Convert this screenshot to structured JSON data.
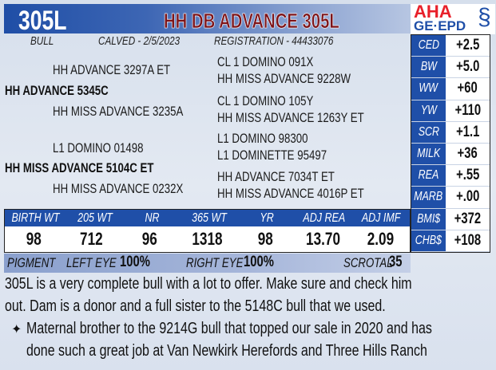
{
  "header": {
    "tag": "305L",
    "name": "HH DB ADVANCE 305L",
    "logo_top": "AHA",
    "logo_bottom": "GE·EPD"
  },
  "info": {
    "sex": "BULL",
    "calved": "CALVED - 2/5/2023",
    "registration": "REGISTRATION - 44433076"
  },
  "pedigree": {
    "sire": "HH ADVANCE 5345C",
    "sire_sire": "HH ADVANCE 3297A ET",
    "sire_dam": "HH MISS ADVANCE 3235A",
    "dam": "HH MISS ADVANCE 5104C ET",
    "dam_sire": "L1 DOMINO 01498",
    "dam_dam": "HH MISS ADVANCE 0232X",
    "gg": [
      "CL 1 DOMINO 091X",
      "HH MISS ADVANCE 9228W",
      "CL 1 DOMINO 105Y",
      "HH MISS ADVANCE 1263Y ET",
      "L1 DOMINO 98300",
      "L1 DOMINETTE 95497",
      "HH ADVANCE 7034T ET",
      "HH MISS ADVANCE 4016P ET"
    ]
  },
  "epds": [
    {
      "label": "CED",
      "value": "+2.5"
    },
    {
      "label": "BW",
      "value": "+5.0"
    },
    {
      "label": "WW",
      "value": "+60"
    },
    {
      "label": "YW",
      "value": "+110"
    },
    {
      "label": "SCR",
      "value": "+1.1"
    },
    {
      "label": "MILK",
      "value": "+36"
    },
    {
      "label": "REA",
      "value": "+.55"
    },
    {
      "label": "MARB",
      "value": "+.00"
    },
    {
      "label": "BMI$",
      "value": "+372"
    },
    {
      "label": "CHB$",
      "value": "+108"
    }
  ],
  "performance": {
    "headers": [
      "BIRTH WT",
      "205 WT",
      "NR",
      "365 WT",
      "YR",
      "ADJ REA",
      "ADJ IMF"
    ],
    "values": [
      "98",
      "712",
      "96",
      "1318",
      "98",
      "13.70",
      "2.09"
    ]
  },
  "pigment": {
    "label": "PIGMENT",
    "left_label": "LEFT EYE",
    "left": "100%",
    "right_label": "RIGHT EYE",
    "right": "100%",
    "scrotal_label": "SCROTAL",
    "scrotal": "35"
  },
  "notes": {
    "line1": "305L is a very complete bull with a lot to offer.  Make sure and check him",
    "line2": "out.  Dam is a donor and a full sister to the 5148C bull that we used.",
    "bullet": "✦",
    "line3": "Maternal brother to the 9214G bull that topped our sale in 2020 and has",
    "line4": "done such a great job at Van Newkirk Herefords and Three Hills Ranch"
  },
  "colors": {
    "blue": "#1f4fa8",
    "maroon": "#7d1419",
    "logo_red": "#e8202a"
  }
}
